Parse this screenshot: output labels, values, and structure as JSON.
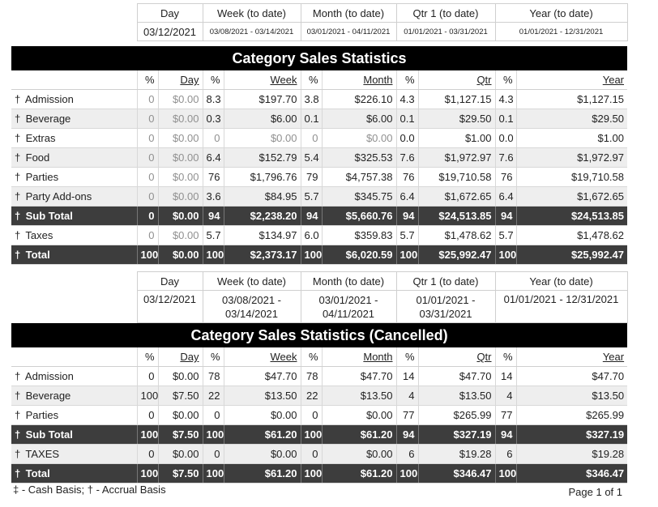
{
  "section1": {
    "periods": [
      "Day",
      "Week (to date)",
      "Month (to date)",
      "Qtr 1 (to date)",
      "Year (to date)"
    ],
    "dates": [
      "03/12/2021",
      "03/08/2021 - 03/14/2021",
      "03/01/2021 - 04/11/2021",
      "01/01/2021 - 03/31/2021",
      "01/01/2021 - 12/31/2021"
    ],
    "title": "Category Sales Statistics",
    "headers": [
      "%",
      "Day",
      "%",
      "Week",
      "%",
      "Month",
      "%",
      "Qtr",
      "%",
      "Year"
    ],
    "rows": [
      {
        "mark": "†",
        "name": "Admission",
        "v": [
          "0",
          "$0.00",
          "8.3",
          "$197.70",
          "3.8",
          "$226.10",
          "4.3",
          "$1,127.15",
          "4.3",
          "$1,127.15"
        ]
      },
      {
        "mark": "†",
        "name": "Beverage",
        "v": [
          "0",
          "$0.00",
          "0.3",
          "$6.00",
          "0.1",
          "$6.00",
          "0.1",
          "$29.50",
          "0.1",
          "$29.50"
        ]
      },
      {
        "mark": "†",
        "name": "Extras",
        "v": [
          "0",
          "$0.00",
          "0",
          "$0.00",
          "0",
          "$0.00",
          "0.0",
          "$1.00",
          "0.0",
          "$1.00"
        ]
      },
      {
        "mark": "†",
        "name": "Food",
        "v": [
          "0",
          "$0.00",
          "6.4",
          "$152.79",
          "5.4",
          "$325.53",
          "7.6",
          "$1,972.97",
          "7.6",
          "$1,972.97"
        ]
      },
      {
        "mark": "†",
        "name": "Parties",
        "v": [
          "0",
          "$0.00",
          "76",
          "$1,796.76",
          "79",
          "$4,757.38",
          "76",
          "$19,710.58",
          "76",
          "$19,710.58"
        ]
      },
      {
        "mark": "†",
        "name": "Party Add-ons",
        "v": [
          "0",
          "$0.00",
          "3.6",
          "$84.95",
          "5.7",
          "$345.75",
          "6.4",
          "$1,672.65",
          "6.4",
          "$1,672.65"
        ]
      }
    ],
    "subtotal": {
      "mark": "†",
      "name": "Sub Total",
      "v": [
        "0",
        "$0.00",
        "94",
        "$2,238.20",
        "94",
        "$5,660.76",
        "94",
        "$24,513.85",
        "94",
        "$24,513.85"
      ]
    },
    "taxes": {
      "mark": "†",
      "name": "Taxes",
      "v": [
        "0",
        "$0.00",
        "5.7",
        "$134.97",
        "6.0",
        "$359.83",
        "5.7",
        "$1,478.62",
        "5.7",
        "$1,478.62"
      ]
    },
    "total": {
      "mark": "†",
      "name": "Total",
      "v": [
        "100",
        "$0.00",
        "100",
        "$2,373.17",
        "100",
        "$6,020.59",
        "100",
        "$25,992.47",
        "100",
        "$25,992.47"
      ]
    }
  },
  "section2": {
    "periods": [
      "Day",
      "Week (to date)",
      "Month (to date)",
      "Qtr 1 (to date)",
      "Year (to date)"
    ],
    "dates": [
      "03/12/2021",
      "03/08/2021 - 03/14/2021",
      "03/01/2021 - 04/11/2021",
      "01/01/2021 - 03/31/2021",
      "01/01/2021 - 12/31/2021"
    ],
    "title": "Category Sales Statistics (Cancelled)",
    "headers": [
      "%",
      "Day",
      "%",
      "Week",
      "%",
      "Month",
      "%",
      "Qtr",
      "%",
      "Year"
    ],
    "rows": [
      {
        "mark": "†",
        "name": "Admission",
        "v": [
          "0",
          "$0.00",
          "78",
          "$47.70",
          "78",
          "$47.70",
          "14",
          "$47.70",
          "14",
          "$47.70"
        ]
      },
      {
        "mark": "†",
        "name": "Beverage",
        "v": [
          "100",
          "$7.50",
          "22",
          "$13.50",
          "22",
          "$13.50",
          "4",
          "$13.50",
          "4",
          "$13.50"
        ]
      },
      {
        "mark": "†",
        "name": "Parties",
        "v": [
          "0",
          "$0.00",
          "0",
          "$0.00",
          "0",
          "$0.00",
          "77",
          "$265.99",
          "77",
          "$265.99"
        ]
      }
    ],
    "subtotal": {
      "mark": "†",
      "name": "Sub Total",
      "v": [
        "100",
        "$7.50",
        "100",
        "$61.20",
        "100",
        "$61.20",
        "94",
        "$327.19",
        "94",
        "$327.19"
      ]
    },
    "taxes": {
      "mark": "†",
      "name": "TAXES",
      "v": [
        "0",
        "$0.00",
        "0",
        "$0.00",
        "0",
        "$0.00",
        "6",
        "$19.28",
        "6",
        "$19.28"
      ]
    },
    "total": {
      "mark": "†",
      "name": "Total",
      "v": [
        "100",
        "$7.50",
        "100",
        "$61.20",
        "100",
        "$61.20",
        "100",
        "$346.47",
        "100",
        "$346.47"
      ]
    }
  },
  "footer": {
    "legend": "‡ - Cash Basis; † - Accrual Basis",
    "page": "Page 1 of 1"
  }
}
